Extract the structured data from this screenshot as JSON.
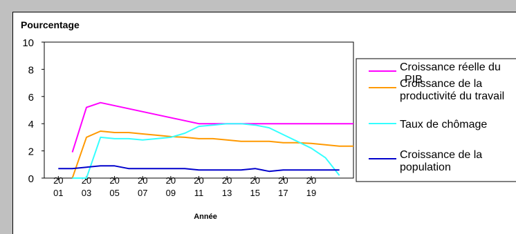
{
  "chart_data": {
    "type": "line",
    "ylabel": "Pourcentage",
    "xlabel": "Année",
    "ylim": [
      0,
      10
    ],
    "yticks": [
      0,
      2,
      4,
      6,
      8,
      10
    ],
    "x_range": [
      2000,
      2022
    ],
    "xtick_years": [
      2001,
      2003,
      2005,
      2007,
      2009,
      2011,
      2013,
      2015,
      2017,
      2019
    ],
    "xtick_labels": [
      {
        "top": "20",
        "bottom": "01"
      },
      {
        "top": "20",
        "bottom": "03"
      },
      {
        "top": "20",
        "bottom": "05"
      },
      {
        "top": "20",
        "bottom": "07"
      },
      {
        "top": "20",
        "bottom": "09"
      },
      {
        "top": "20",
        "bottom": "11"
      },
      {
        "top": "20",
        "bottom": "13"
      },
      {
        "top": "20",
        "bottom": "15"
      },
      {
        "top": "20",
        "bottom": "17"
      },
      {
        "top": "20",
        "bottom": "19"
      }
    ],
    "legend_position": "right",
    "grid": false,
    "series": [
      {
        "name": "Croissance réelle du PIB",
        "legend_lines": [
          "Croissance réelle du",
          "PIB"
        ],
        "color": "#ff00ff",
        "x": [
          2002,
          2003,
          2004,
          2011,
          2012,
          2013,
          2014,
          2015,
          2016,
          2017,
          2018,
          2019,
          2020,
          2021,
          2022
        ],
        "y": [
          1.9,
          5.2,
          5.55,
          4.0,
          4.0,
          4.0,
          4.0,
          4.0,
          4.0,
          4.0,
          4.0,
          4.0,
          4.0,
          4.0,
          4.0
        ]
      },
      {
        "name": "Croissance de la productivité du travail",
        "legend_lines": [
          "Croissance de la",
          "productivité du travail"
        ],
        "color": "#ff9900",
        "x": [
          2002,
          2003,
          2004,
          2005,
          2006,
          2007,
          2008,
          2009,
          2010,
          2011,
          2012,
          2013,
          2014,
          2015,
          2016,
          2017,
          2018,
          2019,
          2020,
          2021,
          2022
        ],
        "y": [
          0.0,
          3.0,
          3.45,
          3.35,
          3.35,
          3.25,
          3.15,
          3.05,
          3.0,
          2.9,
          2.9,
          2.8,
          2.7,
          2.7,
          2.7,
          2.6,
          2.6,
          2.55,
          2.45,
          2.35,
          2.35
        ]
      },
      {
        "name": "Taux de chômage",
        "legend_lines": [
          "Taux de chômage"
        ],
        "color": "#33ffff",
        "x": [
          2002,
          2003,
          2004,
          2005,
          2006,
          2007,
          2008,
          2009,
          2010,
          2011,
          2012,
          2013,
          2014,
          2015,
          2016,
          2017,
          2018,
          2019,
          2020,
          2021,
          2022
        ],
        "y": [
          0.0,
          0.0,
          3.0,
          2.9,
          2.9,
          2.8,
          2.9,
          3.0,
          3.3,
          3.8,
          3.9,
          4.0,
          4.0,
          3.9,
          3.7,
          3.2,
          2.7,
          2.2,
          1.5,
          0.2,
          null
        ]
      },
      {
        "name": "Croissance de la population",
        "legend_lines": [
          "Croissance de la",
          "population"
        ],
        "color": "#0000cc",
        "x": [
          2001,
          2002,
          2003,
          2004,
          2005,
          2006,
          2007,
          2008,
          2009,
          2010,
          2011,
          2012,
          2013,
          2014,
          2015,
          2016,
          2017,
          2018,
          2019,
          2020,
          2021
        ],
        "y": [
          0.7,
          0.7,
          0.8,
          0.9,
          0.9,
          0.7,
          0.7,
          0.7,
          0.7,
          0.7,
          0.6,
          0.6,
          0.6,
          0.6,
          0.7,
          0.5,
          0.6,
          0.6,
          0.6,
          0.6,
          0.6
        ]
      }
    ]
  }
}
